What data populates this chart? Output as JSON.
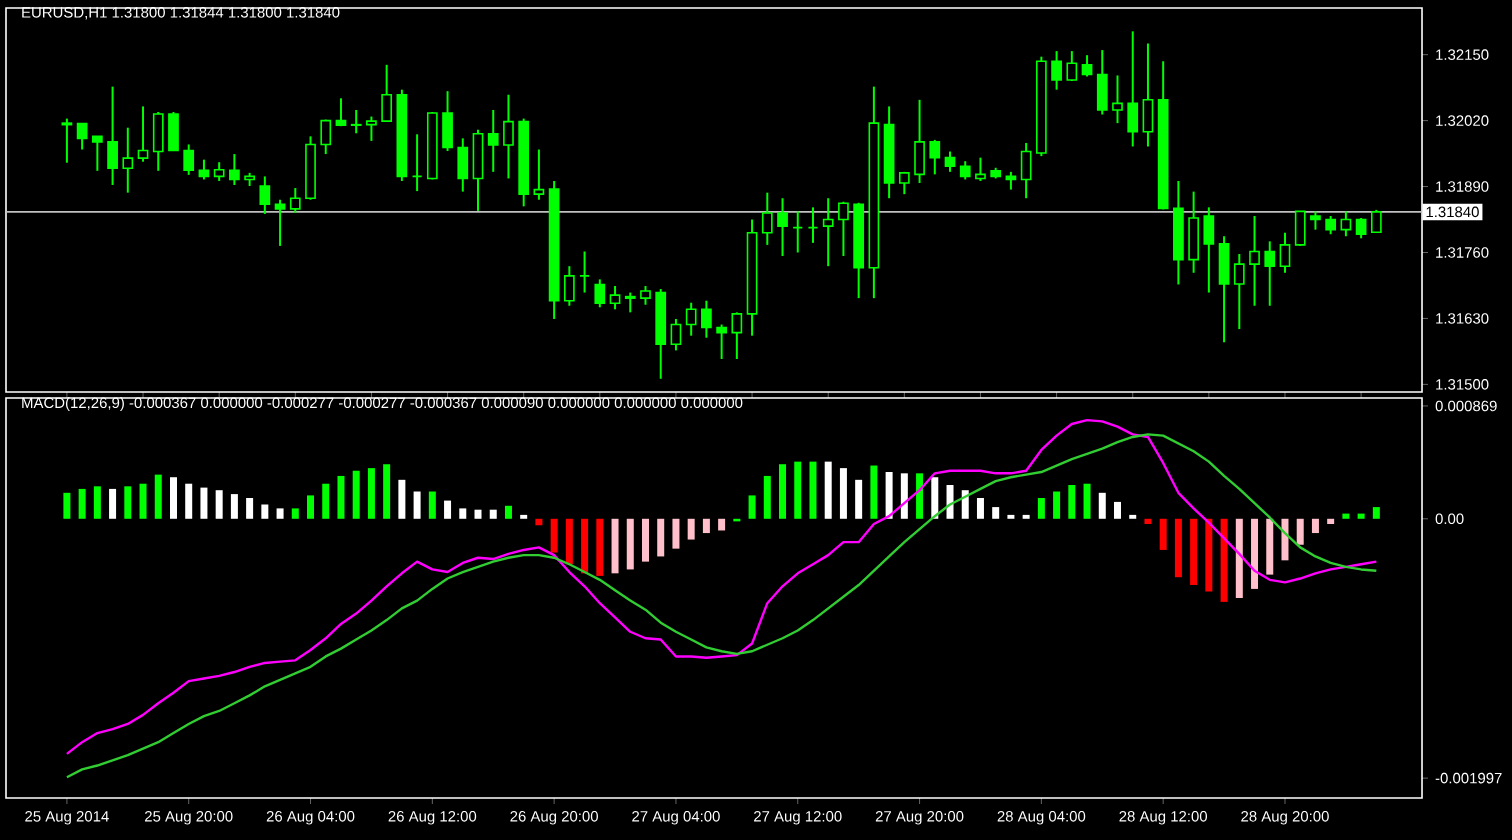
{
  "chart_data": [
    {
      "type": "candlestick",
      "title": "EURUSD,H1 1.31800 1.31844 1.31800 1.31840",
      "color": "#00ff00",
      "x": [
        "2014-08-25T12:00",
        "2014-08-25T13:00",
        "2014-08-25T14:00",
        "2014-08-25T15:00",
        "2014-08-25T16:00",
        "2014-08-25T17:00",
        "2014-08-25T18:00",
        "2014-08-25T19:00",
        "2014-08-25T20:00",
        "2014-08-25T21:00",
        "2014-08-25T22:00",
        "2014-08-25T23:00",
        "2014-08-26T00:00",
        "2014-08-26T01:00",
        "2014-08-26T02:00",
        "2014-08-26T03:00",
        "2014-08-26T04:00",
        "2014-08-26T05:00",
        "2014-08-26T06:00",
        "2014-08-26T07:00",
        "2014-08-26T08:00",
        "2014-08-26T09:00",
        "2014-08-26T10:00",
        "2014-08-26T11:00",
        "2014-08-26T12:00",
        "2014-08-26T13:00",
        "2014-08-26T14:00",
        "2014-08-26T15:00",
        "2014-08-26T16:00",
        "2014-08-26T17:00",
        "2014-08-26T18:00",
        "2014-08-26T19:00",
        "2014-08-26T20:00",
        "2014-08-26T21:00",
        "2014-08-26T22:00",
        "2014-08-26T23:00",
        "2014-08-27T00:00",
        "2014-08-27T01:00",
        "2014-08-27T02:00",
        "2014-08-27T03:00",
        "2014-08-27T04:00",
        "2014-08-27T05:00",
        "2014-08-27T06:00",
        "2014-08-27T07:00",
        "2014-08-27T08:00",
        "2014-08-27T09:00",
        "2014-08-27T10:00",
        "2014-08-27T11:00",
        "2014-08-27T12:00",
        "2014-08-27T13:00",
        "2014-08-27T14:00",
        "2014-08-27T15:00",
        "2014-08-27T16:00",
        "2014-08-27T17:00",
        "2014-08-27T18:00",
        "2014-08-27T19:00",
        "2014-08-27T20:00",
        "2014-08-27T21:00",
        "2014-08-27T22:00",
        "2014-08-27T23:00",
        "2014-08-28T00:00",
        "2014-08-28T01:00",
        "2014-08-28T02:00",
        "2014-08-28T03:00",
        "2014-08-28T04:00",
        "2014-08-28T05:00",
        "2014-08-28T06:00",
        "2014-08-28T07:00",
        "2014-08-28T08:00",
        "2014-08-28T09:00",
        "2014-08-28T10:00",
        "2014-08-28T11:00",
        "2014-08-28T12:00",
        "2014-08-28T13:00",
        "2014-08-28T14:00",
        "2014-08-28T15:00",
        "2014-08-28T16:00",
        "2014-08-28T17:00",
        "2014-08-28T18:00",
        "2014-08-28T19:00",
        "2014-08-28T20:00",
        "2014-08-28T21:00",
        "2014-08-28T22:00",
        "2014-08-28T23:00",
        "2014-08-29T00:00",
        "2014-08-29T01:00",
        "2014-08-29T02:00"
      ],
      "ohlc": [
        [
          1.32015,
          1.32024,
          1.31937,
          1.32012
        ],
        [
          1.32014,
          1.32015,
          1.31963,
          1.31985
        ],
        [
          1.31989,
          1.31989,
          1.31921,
          1.31978
        ],
        [
          1.31978,
          1.32087,
          1.31893,
          1.31926
        ],
        [
          1.31926,
          1.32006,
          1.31878,
          1.31946
        ],
        [
          1.31946,
          1.32048,
          1.31939,
          1.31961
        ],
        [
          1.31959,
          1.32037,
          1.31921,
          1.32033
        ],
        [
          1.32033,
          1.32037,
          1.3196,
          1.31961
        ],
        [
          1.31961,
          1.31973,
          1.31913,
          1.31922
        ],
        [
          1.31922,
          1.31943,
          1.31904,
          1.3191
        ],
        [
          1.3191,
          1.31938,
          1.31901,
          1.31923
        ],
        [
          1.31922,
          1.31954,
          1.31893,
          1.31904
        ],
        [
          1.31904,
          1.31917,
          1.31891,
          1.3191
        ],
        [
          1.31891,
          1.3191,
          1.31836,
          1.31855
        ],
        [
          1.31855,
          1.31864,
          1.31773,
          1.31846
        ],
        [
          1.31846,
          1.31887,
          1.31838,
          1.31867
        ],
        [
          1.31867,
          1.31989,
          1.31864,
          1.31973
        ],
        [
          1.31973,
          1.32022,
          1.31954,
          1.3202
        ],
        [
          1.3202,
          1.32064,
          1.32009,
          1.32011
        ],
        [
          1.32011,
          1.32041,
          1.31995,
          1.32012
        ],
        [
          1.32012,
          1.32028,
          1.3198,
          1.32019
        ],
        [
          1.32019,
          1.3213,
          1.32019,
          1.32071
        ],
        [
          1.32071,
          1.32081,
          1.31901,
          1.3191
        ],
        [
          1.3191,
          1.31993,
          1.31881,
          1.3191
        ],
        [
          1.31906,
          1.32037,
          1.31904,
          1.32035
        ],
        [
          1.32035,
          1.32078,
          1.3196,
          1.31967
        ],
        [
          1.31967,
          1.31985,
          1.3188,
          1.31906
        ],
        [
          1.31906,
          1.32002,
          1.31842,
          1.31994
        ],
        [
          1.31994,
          1.32041,
          1.31919,
          1.31972
        ],
        [
          1.31972,
          1.32071,
          1.31906,
          1.32018
        ],
        [
          1.32018,
          1.32024,
          1.31851,
          1.31875
        ],
        [
          1.31875,
          1.31963,
          1.31864,
          1.31884
        ],
        [
          1.31885,
          1.31901,
          1.31629,
          1.31665
        ],
        [
          1.31665,
          1.31733,
          1.31655,
          1.31714
        ],
        [
          1.31714,
          1.31762,
          1.31681,
          1.31714
        ],
        [
          1.31697,
          1.31707,
          1.31652,
          1.3166
        ],
        [
          1.3166,
          1.31694,
          1.31648,
          1.31676
        ],
        [
          1.31673,
          1.31681,
          1.31642,
          1.3167
        ],
        [
          1.3167,
          1.31694,
          1.31657,
          1.31684
        ],
        [
          1.31681,
          1.31688,
          1.31511,
          1.31579
        ],
        [
          1.31579,
          1.31629,
          1.31567,
          1.31618
        ],
        [
          1.31618,
          1.31661,
          1.31596,
          1.31648
        ],
        [
          1.31648,
          1.31665,
          1.31592,
          1.31612
        ],
        [
          1.31612,
          1.31618,
          1.3155,
          1.31602
        ],
        [
          1.31602,
          1.31642,
          1.3155,
          1.31639
        ],
        [
          1.31639,
          1.31825,
          1.31596,
          1.31799
        ],
        [
          1.31799,
          1.31878,
          1.31775,
          1.31838
        ],
        [
          1.31838,
          1.31867,
          1.31753,
          1.31812
        ],
        [
          1.31809,
          1.31841,
          1.3176,
          1.31809
        ],
        [
          1.31809,
          1.31849,
          1.31779,
          1.31809
        ],
        [
          1.31812,
          1.31867,
          1.31733,
          1.31825
        ],
        [
          1.31825,
          1.3186,
          1.31753,
          1.31857
        ],
        [
          1.31855,
          1.31858,
          1.3167,
          1.3173
        ],
        [
          1.3173,
          1.32087,
          1.3167,
          1.32015
        ],
        [
          1.32012,
          1.32048,
          1.31867,
          1.31897
        ],
        [
          1.31897,
          1.31919,
          1.31875,
          1.31917
        ],
        [
          1.31914,
          1.32061,
          1.31897,
          1.31978
        ],
        [
          1.31978,
          1.31982,
          1.31914,
          1.31947
        ],
        [
          1.31947,
          1.31959,
          1.31919,
          1.3193
        ],
        [
          1.3193,
          1.3194,
          1.31904,
          1.3191
        ],
        [
          1.31906,
          1.31947,
          1.31901,
          1.31914
        ],
        [
          1.31921,
          1.31927,
          1.31906,
          1.3191
        ],
        [
          1.3191,
          1.31919,
          1.31884,
          1.31904
        ],
        [
          1.31904,
          1.31976,
          1.31867,
          1.31959
        ],
        [
          1.31956,
          1.32146,
          1.3195,
          1.32137
        ],
        [
          1.32137,
          1.32157,
          1.32081,
          1.321
        ],
        [
          1.321,
          1.32157,
          1.32098,
          1.32133
        ],
        [
          1.3213,
          1.32149,
          1.32107,
          1.32111
        ],
        [
          1.32111,
          1.32159,
          1.32032,
          1.32041
        ],
        [
          1.32041,
          1.32109,
          1.32015,
          1.32054
        ],
        [
          1.32054,
          1.32196,
          1.31969,
          1.31998
        ],
        [
          1.31998,
          1.32172,
          1.31969,
          1.32061
        ],
        [
          1.32061,
          1.32137,
          1.31845,
          1.31847
        ],
        [
          1.31847,
          1.31901,
          1.31697,
          1.31746
        ],
        [
          1.31746,
          1.3188,
          1.3172,
          1.31828
        ],
        [
          1.31832,
          1.31849,
          1.31681,
          1.31777
        ],
        [
          1.31777,
          1.31792,
          1.31583,
          1.31698
        ],
        [
          1.31698,
          1.31757,
          1.31609,
          1.31737
        ],
        [
          1.31737,
          1.31832,
          1.31655,
          1.31762
        ],
        [
          1.31762,
          1.31782,
          1.31655,
          1.31733
        ],
        [
          1.31733,
          1.31799,
          1.3172,
          1.31775
        ],
        [
          1.31775,
          1.31841,
          1.31773,
          1.31841
        ],
        [
          1.31832,
          1.31841,
          1.31805,
          1.31825
        ],
        [
          1.31825,
          1.31832,
          1.31796,
          1.31805
        ],
        [
          1.31805,
          1.31841,
          1.31792,
          1.31825
        ],
        [
          1.31825,
          1.31828,
          1.31788,
          1.31796
        ],
        [
          1.318,
          1.31844,
          1.318,
          1.3184
        ]
      ],
      "xlim": [
        "2014-08-25T08:00",
        "2014-08-29T05:00"
      ],
      "ylim": [
        1.31485,
        1.32242
      ],
      "yticks": [
        {
          "value": 1.315,
          "label": "1.31500"
        },
        {
          "value": 1.3163,
          "label": "1.31630"
        },
        {
          "value": 1.3176,
          "label": "1.31760"
        },
        {
          "value": 1.3189,
          "label": "1.31890"
        },
        {
          "value": 1.3202,
          "label": "1.32020"
        },
        {
          "value": 1.3215,
          "label": "1.32150"
        }
      ],
      "ref_lines": [
        {
          "axis": "y",
          "value": 1.3184,
          "label": "1.31840",
          "color": "#c0c0c0"
        }
      ],
      "tick_labels": "y"
    },
    {
      "type": "bar",
      "title": "MACD(12,26,9) -0.000367 0.000000 -0.000277 -0.000277 -0.000367 0.000090 0.000000 0.000000 0.000000",
      "x": [
        "2014-08-25T12:00",
        "2014-08-25T13:00",
        "2014-08-25T14:00",
        "2014-08-25T15:00",
        "2014-08-25T16:00",
        "2014-08-25T17:00",
        "2014-08-25T18:00",
        "2014-08-25T19:00",
        "2014-08-25T20:00",
        "2014-08-25T21:00",
        "2014-08-25T22:00",
        "2014-08-25T23:00",
        "2014-08-26T00:00",
        "2014-08-26T01:00",
        "2014-08-26T02:00",
        "2014-08-26T03:00",
        "2014-08-26T04:00",
        "2014-08-26T05:00",
        "2014-08-26T06:00",
        "2014-08-26T07:00",
        "2014-08-26T08:00",
        "2014-08-26T09:00",
        "2014-08-26T10:00",
        "2014-08-26T11:00",
        "2014-08-26T12:00",
        "2014-08-26T13:00",
        "2014-08-26T14:00",
        "2014-08-26T15:00",
        "2014-08-26T16:00",
        "2014-08-26T17:00",
        "2014-08-26T18:00",
        "2014-08-26T19:00",
        "2014-08-26T20:00",
        "2014-08-26T21:00",
        "2014-08-26T22:00",
        "2014-08-26T23:00",
        "2014-08-27T00:00",
        "2014-08-27T01:00",
        "2014-08-27T02:00",
        "2014-08-27T03:00",
        "2014-08-27T04:00",
        "2014-08-27T05:00",
        "2014-08-27T06:00",
        "2014-08-27T07:00",
        "2014-08-27T08:00",
        "2014-08-27T09:00",
        "2014-08-27T10:00",
        "2014-08-27T11:00",
        "2014-08-27T12:00",
        "2014-08-27T13:00",
        "2014-08-27T14:00",
        "2014-08-27T15:00",
        "2014-08-27T16:00",
        "2014-08-27T17:00",
        "2014-08-27T18:00",
        "2014-08-27T19:00",
        "2014-08-27T20:00",
        "2014-08-27T21:00",
        "2014-08-27T22:00",
        "2014-08-27T23:00",
        "2014-08-28T00:00",
        "2014-08-28T01:00",
        "2014-08-28T02:00",
        "2014-08-28T03:00",
        "2014-08-28T04:00",
        "2014-08-28T05:00",
        "2014-08-28T06:00",
        "2014-08-28T07:00",
        "2014-08-28T08:00",
        "2014-08-28T09:00",
        "2014-08-28T10:00",
        "2014-08-28T11:00",
        "2014-08-28T12:00",
        "2014-08-28T13:00",
        "2014-08-28T14:00",
        "2014-08-28T15:00",
        "2014-08-28T16:00",
        "2014-08-28T17:00",
        "2014-08-28T18:00",
        "2014-08-28T19:00",
        "2014-08-28T20:00",
        "2014-08-28T21:00",
        "2014-08-28T22:00",
        "2014-08-28T23:00",
        "2014-08-29T00:00",
        "2014-08-29T01:00",
        "2014-08-29T02:00"
      ],
      "series": [
        {
          "type": "bar",
          "values": [
            0.0002,
            0.00023,
            0.00025,
            0.00023,
            0.00025,
            0.00027,
            0.00034,
            0.00032,
            0.00027,
            0.00024,
            0.00022,
            0.00019,
            0.00016,
            0.00011,
            8e-05,
            8e-05,
            0.00018,
            0.00027,
            0.00033,
            0.00037,
            0.00039,
            0.00042,
            0.0003,
            0.00021,
            0.00021,
            0.00014,
            8e-05,
            7e-05,
            7e-05,
            0.0001,
            3e-05,
            -5e-05,
            -0.00026,
            -0.00035,
            -0.00042,
            -0.00044,
            -0.00042,
            -0.00039,
            -0.00033,
            -0.00029,
            -0.00023,
            -0.00016,
            -0.00011,
            -9e-05,
            -2e-05,
            0.00018,
            0.00033,
            0.00042,
            0.00044,
            0.00044,
            0.00044,
            0.00039,
            0.0003,
            0.00041,
            0.00036,
            0.00035,
            0.00035,
            0.00032,
            0.00026,
            0.00022,
            0.00016,
            9e-05,
            3e-05,
            3e-05,
            0.00016,
            0.00021,
            0.00026,
            0.00027,
            0.0002,
            0.00013,
            3e-05,
            -4e-05,
            -0.00024,
            -0.00045,
            -0.00051,
            -0.00056,
            -0.00064,
            -0.00061,
            -0.00054,
            -0.00043,
            -0.00032,
            -0.0002,
            -0.00011,
            -4e-05,
            4e-05,
            4e-05,
            9e-05
          ],
          "colors": [
            "#00ff00",
            "#00ff00",
            "#00ff00",
            "#ffffff",
            "#00ff00",
            "#00ff00",
            "#00ff00",
            "#ffffff",
            "#ffffff",
            "#ffffff",
            "#ffffff",
            "#ffffff",
            "#ffffff",
            "#ffffff",
            "#ffffff",
            "#00ff00",
            "#00ff00",
            "#00ff00",
            "#00ff00",
            "#00ff00",
            "#00ff00",
            "#00ff00",
            "#ffffff",
            "#ffffff",
            "#00ff00",
            "#ffffff",
            "#ffffff",
            "#ffffff",
            "#ffffff",
            "#00ff00",
            "#ffffff",
            "#ff0000",
            "#ff0000",
            "#ff0000",
            "#ff0000",
            "#ff0000",
            "#ffc0cb",
            "#ffc0cb",
            "#ffc0cb",
            "#ffc0cb",
            "#ffc0cb",
            "#ffc0cb",
            "#ffc0cb",
            "#ffc0cb",
            "#00ff00",
            "#00ff00",
            "#00ff00",
            "#00ff00",
            "#00ff00",
            "#00ff00",
            "#ffffff",
            "#ffffff",
            "#ffffff",
            "#00ff00",
            "#ffffff",
            "#ffffff",
            "#00ff00",
            "#ffffff",
            "#ffffff",
            "#ffffff",
            "#ffffff",
            "#ffffff",
            "#ffffff",
            "#ffffff",
            "#00ff00",
            "#00ff00",
            "#00ff00",
            "#00ff00",
            "#ffffff",
            "#ffffff",
            "#ffffff",
            "#ff0000",
            "#ff0000",
            "#ff0000",
            "#ff0000",
            "#ff0000",
            "#ff0000",
            "#ffc0cb",
            "#ffc0cb",
            "#ffc0cb",
            "#ffc0cb",
            "#ffc0cb",
            "#ffc0cb",
            "#ffc0cb",
            "#00ff00",
            "#00ff00",
            "#00ff00"
          ]
        },
        {
          "type": "line",
          "color": "#ff00ff",
          "values": [
            -0.00181,
            -0.00172,
            -0.00165,
            -0.00162,
            -0.00158,
            -0.00151,
            -0.00142,
            -0.00134,
            -0.00125,
            -0.00123,
            -0.00121,
            -0.00118,
            -0.00114,
            -0.00111,
            -0.0011,
            -0.00109,
            -0.00101,
            -0.00092,
            -0.00081,
            -0.00073,
            -0.00063,
            -0.00052,
            -0.00042,
            -0.00033,
            -0.00039,
            -0.00041,
            -0.00034,
            -0.0003,
            -0.00031,
            -0.00027,
            -0.00024,
            -0.00022,
            -0.00028,
            -0.00041,
            -0.00052,
            -0.00065,
            -0.00076,
            -0.00087,
            -0.00092,
            -0.00093,
            -0.00106,
            -0.00106,
            -0.00107,
            -0.00106,
            -0.00105,
            -0.00096,
            -0.00065,
            -0.00052,
            -0.00042,
            -0.00035,
            -0.00028,
            -0.00018,
            -0.00018,
            -4e-05,
            2e-05,
            0.00012,
            0.00022,
            0.00035,
            0.00037,
            0.00037,
            0.00037,
            0.00035,
            0.00035,
            0.00037,
            0.00053,
            0.00064,
            0.00073,
            0.00076,
            0.00075,
            0.00071,
            0.00065,
            0.00063,
            0.00043,
            0.0002,
            8e-05,
            -3e-05,
            -0.00015,
            -0.00027,
            -0.0004,
            -0.00047,
            -0.00049,
            -0.00046,
            -0.00042,
            -0.00039,
            -0.00037,
            -0.00035,
            -0.00033
          ]
        },
        {
          "type": "line",
          "color": "#32cd32",
          "values": [
            -0.00199,
            -0.00193,
            -0.0019,
            -0.00186,
            -0.00182,
            -0.00177,
            -0.00172,
            -0.00165,
            -0.00158,
            -0.00152,
            -0.00148,
            -0.00142,
            -0.00136,
            -0.00129,
            -0.00124,
            -0.00119,
            -0.00114,
            -0.00106,
            -0.001,
            -0.00093,
            -0.00086,
            -0.00078,
            -0.00069,
            -0.00063,
            -0.00054,
            -0.00046,
            -0.00041,
            -0.00037,
            -0.00033,
            -0.0003,
            -0.00028,
            -0.00028,
            -0.0003,
            -0.00035,
            -0.00041,
            -0.00047,
            -0.00055,
            -0.00063,
            -0.0007,
            -0.0008,
            -0.00087,
            -0.00093,
            -0.00099,
            -0.00102,
            -0.00104,
            -0.00102,
            -0.00097,
            -0.00092,
            -0.00086,
            -0.00078,
            -0.00069,
            -0.0006,
            -0.00051,
            -0.0004,
            -0.00029,
            -0.00018,
            -8e-05,
            2e-05,
            0.00011,
            0.00017,
            0.00023,
            0.00029,
            0.00032,
            0.00034,
            0.00036,
            0.00041,
            0.00046,
            0.0005,
            0.00054,
            0.00059,
            0.00063,
            0.00065,
            0.00064,
            0.00058,
            0.00052,
            0.00044,
            0.00033,
            0.00023,
            0.00012,
            1e-05,
            -0.00011,
            -0.00022,
            -0.00029,
            -0.00034,
            -0.00037,
            -0.00039,
            -0.0004
          ]
        }
      ],
      "xlim": [
        "2014-08-25T08:00",
        "2014-08-29T05:00"
      ],
      "xticks": [
        {
          "value": "2014-08-25T12:00",
          "label": "25 Aug 2014"
        },
        {
          "value": "2014-08-25T20:00",
          "label": "25 Aug 20:00"
        },
        {
          "value": "2014-08-26T04:00",
          "label": "26 Aug 04:00"
        },
        {
          "value": "2014-08-26T12:00",
          "label": "26 Aug 12:00"
        },
        {
          "value": "2014-08-26T20:00",
          "label": "26 Aug 20:00"
        },
        {
          "value": "2014-08-27T04:00",
          "label": "27 Aug 04:00"
        },
        {
          "value": "2014-08-27T12:00",
          "label": "27 Aug 12:00"
        },
        {
          "value": "2014-08-27T20:00",
          "label": "27 Aug 20:00"
        },
        {
          "value": "2014-08-28T04:00",
          "label": "28 Aug 04:00"
        },
        {
          "value": "2014-08-28T12:00",
          "label": "28 Aug 12:00"
        },
        {
          "value": "2014-08-28T20:00",
          "label": "28 Aug 20:00"
        }
      ],
      "ylim": [
        -0.00215,
        0.00093
      ],
      "yticks": [
        {
          "value": -0.001997,
          "label": "-0.001997"
        },
        {
          "value": 0,
          "label": "0.00"
        },
        {
          "value": 0.000869,
          "label": "0.000869"
        }
      ]
    }
  ]
}
